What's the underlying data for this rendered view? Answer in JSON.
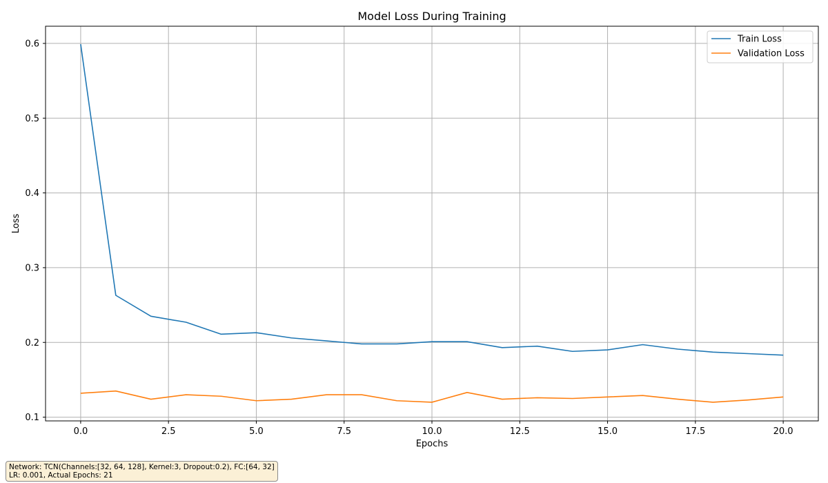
{
  "chart_data": {
    "type": "line",
    "title": "Model Loss During Training",
    "xlabel": "Epochs",
    "ylabel": "Loss",
    "xlim": [
      -1.0,
      21.0
    ],
    "ylim": [
      0.095,
      0.623
    ],
    "xticks": [
      0.0,
      2.5,
      5.0,
      7.5,
      10.0,
      12.5,
      15.0,
      17.5,
      20.0
    ],
    "xtick_labels": [
      "0.0",
      "2.5",
      "5.0",
      "7.5",
      "10.0",
      "12.5",
      "15.0",
      "17.5",
      "20.0"
    ],
    "yticks": [
      0.1,
      0.2,
      0.3,
      0.4,
      0.5,
      0.6
    ],
    "ytick_labels": [
      "0.1",
      "0.2",
      "0.3",
      "0.4",
      "0.5",
      "0.6"
    ],
    "grid": true,
    "legend_position": "top-right",
    "x": [
      0,
      1,
      2,
      3,
      4,
      5,
      6,
      7,
      8,
      9,
      10,
      11,
      12,
      13,
      14,
      15,
      16,
      17,
      18,
      19,
      20
    ],
    "series": [
      {
        "name": "Train Loss",
        "color": "#1f77b4",
        "values": [
          0.599,
          0.263,
          0.235,
          0.227,
          0.211,
          0.213,
          0.206,
          0.202,
          0.198,
          0.198,
          0.201,
          0.201,
          0.193,
          0.195,
          0.188,
          0.19,
          0.197,
          0.191,
          0.187,
          0.185,
          0.183
        ]
      },
      {
        "name": "Validation Loss",
        "color": "#ff7f0e",
        "values": [
          0.132,
          0.135,
          0.124,
          0.13,
          0.128,
          0.122,
          0.124,
          0.13,
          0.13,
          0.122,
          0.12,
          0.133,
          0.124,
          0.126,
          0.125,
          0.127,
          0.129,
          0.124,
          0.12,
          0.123,
          0.127
        ]
      }
    ]
  },
  "annotation": {
    "line1": "Network: TCN(Channels:[32, 64, 128], Kernel:3, Dropout:0.2), FC:[64, 32]",
    "line2": "LR: 0.001, Actual Epochs: 21"
  }
}
